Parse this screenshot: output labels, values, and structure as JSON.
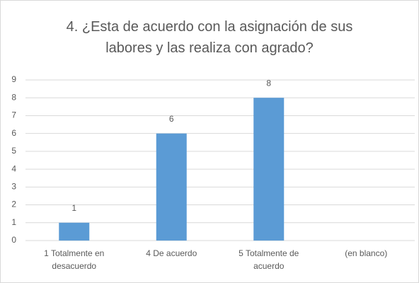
{
  "chart_data": {
    "type": "bar",
    "title": "4. ¿Esta de acuerdo con la asignación de sus labores y las realiza con agrado?",
    "categories": [
      "1 Totalmente en desacuerdo",
      "4 De acuerdo",
      "5 Totalmente de acuerdo",
      "(en blanco)"
    ],
    "values": [
      1,
      6,
      8,
      null
    ],
    "color": "#5b9bd5",
    "ylim": [
      0,
      9
    ],
    "yticks": [
      0,
      1,
      2,
      3,
      4,
      5,
      6,
      7,
      8,
      9
    ],
    "grid": true
  }
}
